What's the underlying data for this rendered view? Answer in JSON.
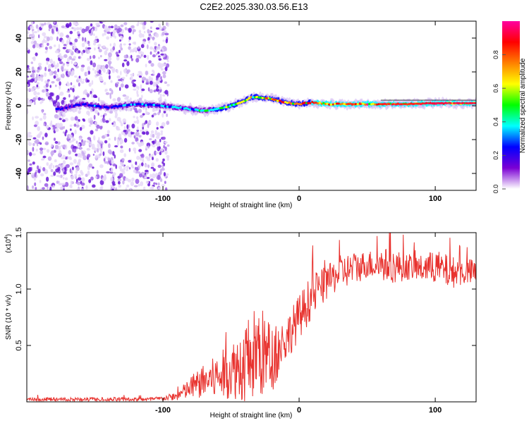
{
  "title": "C2E2.2025.330.03.56.E13",
  "colors": {
    "snr_line": "#e8322e",
    "axis": "#000000",
    "background": "#ffffff"
  },
  "chart_data": [
    {
      "id": "spectrogram",
      "type": "heatmap",
      "xlabel": "Height of straight line (km)",
      "ylabel": "Frequency (Hz)",
      "xlim": [
        -200,
        130
      ],
      "ylim": [
        -50,
        50
      ],
      "xticks": [
        {
          "v": -100,
          "label": "-100"
        },
        {
          "v": 0,
          "label": "0"
        },
        {
          "v": 100,
          "label": "100"
        }
      ],
      "yticks": [
        {
          "v": -40,
          "label": "-40"
        },
        {
          "v": -20,
          "label": "-20"
        },
        {
          "v": 0,
          "label": "0"
        },
        {
          "v": 20,
          "label": "20"
        },
        {
          "v": 40,
          "label": "40"
        }
      ],
      "noise_region_end": -100,
      "ridge": {
        "x": [
          -175,
          -160,
          -140,
          -120,
          -100,
          -90,
          -80,
          -70,
          -60,
          -50,
          -40,
          -35,
          -30,
          -20,
          -10,
          0,
          10,
          20,
          40,
          60,
          80,
          100,
          130
        ],
        "freq": [
          -2,
          1,
          -1,
          1,
          0,
          -1,
          -2,
          -3,
          -2,
          0,
          3,
          5,
          5,
          4,
          2,
          1,
          2,
          1,
          1,
          1,
          1,
          1.5,
          1.5
        ],
        "amplitude": [
          0.3,
          0.3,
          0.3,
          0.35,
          0.4,
          0.4,
          0.45,
          0.5,
          0.55,
          0.6,
          0.65,
          0.7,
          0.75,
          0.8,
          0.85,
          0.85,
          0.9,
          0.9,
          0.92,
          0.92,
          0.95,
          0.97,
          0.98
        ]
      },
      "colorbar": {
        "label": "Normalized spectral amplitude",
        "range": [
          0,
          1
        ],
        "ticks": [
          {
            "v": 0.0,
            "label": "0.0"
          },
          {
            "v": 0.2,
            "label": "0.2"
          },
          {
            "v": 0.4,
            "label": "0.4"
          },
          {
            "v": 0.6,
            "label": "0.6"
          },
          {
            "v": 0.8,
            "label": "0.8"
          }
        ],
        "stops": [
          "#ffffff",
          "#7b00d4",
          "#0000ff",
          "#00ffff",
          "#00ff00",
          "#ffff00",
          "#ff8000",
          "#ff0000",
          "#ff00a0"
        ]
      }
    },
    {
      "id": "snr",
      "type": "line",
      "xlabel": "Height of straight line (km)",
      "ylabel": "SNR (10 * v/v)",
      "exponent_label": "(x10",
      "exponent_power": "4",
      "exponent_close": ")",
      "xlim": [
        -200,
        130
      ],
      "ylim": [
        0,
        1.5
      ],
      "xticks": [
        {
          "v": -100,
          "label": "-100"
        },
        {
          "v": 0,
          "label": "0"
        },
        {
          "v": 100,
          "label": "100"
        }
      ],
      "yticks": [
        {
          "v": 0.5,
          "label": "0.5"
        },
        {
          "v": 1.0,
          "label": "1.0"
        },
        {
          "v": 1.5,
          "label": "1.5"
        }
      ],
      "envelope": {
        "x": [
          -200,
          -110,
          -100,
          -90,
          -80,
          -70,
          -60,
          -50,
          -40,
          -30,
          -20,
          -10,
          0,
          10,
          20,
          30,
          40,
          50,
          60,
          70,
          80,
          90,
          100,
          110,
          120,
          130
        ],
        "mean": [
          0.02,
          0.02,
          0.03,
          0.05,
          0.12,
          0.18,
          0.22,
          0.28,
          0.35,
          0.45,
          0.38,
          0.55,
          0.75,
          0.95,
          1.05,
          1.15,
          1.18,
          1.22,
          1.22,
          1.2,
          1.2,
          1.18,
          1.2,
          1.15,
          1.15,
          1.15
        ],
        "spread": [
          0.02,
          0.02,
          0.02,
          0.04,
          0.1,
          0.15,
          0.2,
          0.25,
          0.35,
          0.45,
          0.3,
          0.2,
          0.2,
          0.2,
          0.15,
          0.15,
          0.15,
          0.12,
          0.15,
          0.15,
          0.12,
          0.12,
          0.15,
          0.15,
          0.12,
          0.12
        ]
      }
    }
  ]
}
